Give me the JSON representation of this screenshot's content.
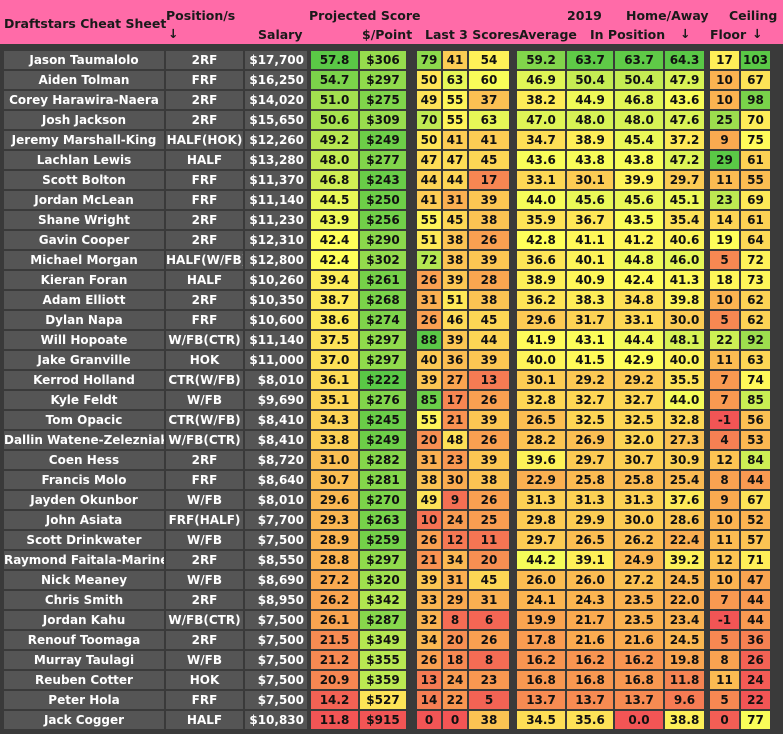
{
  "header": {
    "title": "Draftstars Cheat Sheet",
    "position": "Position/s",
    "position_arrow": "↓",
    "salary": "Salary",
    "projected_score": "Projected Score",
    "per_point": "$/Point",
    "last3": "Last 3 Scores",
    "year": "2019",
    "average": "Average",
    "home_away": "Home/Away",
    "in_position": "In Position",
    "ha_arrow": "↓",
    "floor": "Floor",
    "ceiling": "Ceiling",
    "ceiling_arrow": "↓"
  },
  "players": [
    {
      "name": "Jason Taumalolo",
      "pos": "2RF",
      "salary": "$17,700",
      "proj": "57.8",
      "ppp": "$306",
      "l1": "79",
      "l2": "41",
      "l3": "54",
      "avg": "59.2",
      "inpos": "63.7",
      "ha": "63.7",
      "ha2": "64.3",
      "floor": "17",
      "ceil": "103"
    },
    {
      "name": "Aiden Tolman",
      "pos": "FRF",
      "salary": "$16,250",
      "proj": "54.7",
      "ppp": "$297",
      "l1": "50",
      "l2": "63",
      "l3": "60",
      "avg": "46.9",
      "inpos": "50.4",
      "ha": "50.4",
      "ha2": "47.9",
      "floor": "10",
      "ceil": "67"
    },
    {
      "name": "Corey Harawira-Naera",
      "pos": "2RF",
      "salary": "$14,020",
      "proj": "51.0",
      "ppp": "$275",
      "l1": "49",
      "l2": "55",
      "l3": "37",
      "avg": "38.2",
      "inpos": "44.9",
      "ha": "46.8",
      "ha2": "43.6",
      "floor": "10",
      "ceil": "98"
    },
    {
      "name": "Josh Jackson",
      "pos": "2RF",
      "salary": "$15,650",
      "proj": "50.6",
      "ppp": "$309",
      "l1": "70",
      "l2": "55",
      "l3": "63",
      "avg": "47.0",
      "inpos": "48.0",
      "ha": "48.0",
      "ha2": "47.6",
      "floor": "25",
      "ceil": "70"
    },
    {
      "name": "Jeremy Marshall-King",
      "pos": "HALF(HOK)",
      "salary": "$12,260",
      "proj": "49.2",
      "ppp": "$249",
      "l1": "50",
      "l2": "41",
      "l3": "41",
      "avg": "34.7",
      "inpos": "38.9",
      "ha": "45.4",
      "ha2": "37.2",
      "floor": "9",
      "ceil": "75"
    },
    {
      "name": "Lachlan Lewis",
      "pos": "HALF",
      "salary": "$13,280",
      "proj": "48.0",
      "ppp": "$277",
      "l1": "47",
      "l2": "47",
      "l3": "45",
      "avg": "43.6",
      "inpos": "43.8",
      "ha": "43.8",
      "ha2": "47.2",
      "floor": "29",
      "ceil": "61"
    },
    {
      "name": "Scott Bolton",
      "pos": "FRF",
      "salary": "$11,370",
      "proj": "46.8",
      "ppp": "$243",
      "l1": "44",
      "l2": "44",
      "l3": "17",
      "avg": "33.1",
      "inpos": "30.1",
      "ha": "39.9",
      "ha2": "29.7",
      "floor": "11",
      "ceil": "55"
    },
    {
      "name": "Jordan McLean",
      "pos": "FRF",
      "salary": "$11,140",
      "proj": "44.5",
      "ppp": "$250",
      "l1": "41",
      "l2": "31",
      "l3": "39",
      "avg": "44.0",
      "inpos": "45.6",
      "ha": "45.6",
      "ha2": "45.1",
      "floor": "23",
      "ceil": "69"
    },
    {
      "name": "Shane Wright",
      "pos": "2RF",
      "salary": "$11,230",
      "proj": "43.9",
      "ppp": "$256",
      "l1": "55",
      "l2": "45",
      "l3": "38",
      "avg": "35.9",
      "inpos": "36.7",
      "ha": "43.5",
      "ha2": "35.4",
      "floor": "14",
      "ceil": "61"
    },
    {
      "name": "Gavin Cooper",
      "pos": "2RF",
      "salary": "$12,310",
      "proj": "42.4",
      "ppp": "$290",
      "l1": "51",
      "l2": "38",
      "l3": "26",
      "avg": "42.8",
      "inpos": "41.1",
      "ha": "41.2",
      "ha2": "40.6",
      "floor": "19",
      "ceil": "64"
    },
    {
      "name": "Michael Morgan",
      "pos": "HALF(W/FB)",
      "salary": "$12,800",
      "proj": "42.4",
      "ppp": "$302",
      "l1": "72",
      "l2": "38",
      "l3": "39",
      "avg": "36.6",
      "inpos": "40.1",
      "ha": "44.8",
      "ha2": "46.0",
      "floor": "5",
      "ceil": "72"
    },
    {
      "name": "Kieran Foran",
      "pos": "HALF",
      "salary": "$10,260",
      "proj": "39.4",
      "ppp": "$261",
      "l1": "26",
      "l2": "39",
      "l3": "28",
      "avg": "38.9",
      "inpos": "40.9",
      "ha": "42.4",
      "ha2": "41.3",
      "floor": "18",
      "ceil": "73"
    },
    {
      "name": "Adam Elliott",
      "pos": "2RF",
      "salary": "$10,350",
      "proj": "38.7",
      "ppp": "$268",
      "l1": "31",
      "l2": "51",
      "l3": "38",
      "avg": "36.2",
      "inpos": "38.3",
      "ha": "34.8",
      "ha2": "39.8",
      "floor": "10",
      "ceil": "62"
    },
    {
      "name": "Dylan Napa",
      "pos": "FRF",
      "salary": "$10,600",
      "proj": "38.6",
      "ppp": "$274",
      "l1": "26",
      "l2": "46",
      "l3": "45",
      "avg": "29.6",
      "inpos": "31.7",
      "ha": "33.1",
      "ha2": "30.0",
      "floor": "5",
      "ceil": "62"
    },
    {
      "name": "Will Hopoate",
      "pos": "W/FB(CTR)",
      "salary": "$11,140",
      "proj": "37.5",
      "ppp": "$297",
      "l1": "88",
      "l2": "39",
      "l3": "44",
      "avg": "41.9",
      "inpos": "43.1",
      "ha": "44.4",
      "ha2": "48.1",
      "floor": "22",
      "ceil": "92"
    },
    {
      "name": "Jake Granville",
      "pos": "HOK",
      "salary": "$11,000",
      "proj": "37.0",
      "ppp": "$297",
      "l1": "40",
      "l2": "36",
      "l3": "39",
      "avg": "40.0",
      "inpos": "41.5",
      "ha": "42.9",
      "ha2": "40.0",
      "floor": "11",
      "ceil": "63"
    },
    {
      "name": "Kerrod Holland",
      "pos": "CTR(W/FB)",
      "salary": "$8,010",
      "proj": "36.1",
      "ppp": "$222",
      "l1": "39",
      "l2": "27",
      "l3": "13",
      "avg": "30.1",
      "inpos": "29.2",
      "ha": "29.2",
      "ha2": "35.5",
      "floor": "7",
      "ceil": "74"
    },
    {
      "name": "Kyle Feldt",
      "pos": "W/FB",
      "salary": "$9,690",
      "proj": "35.1",
      "ppp": "$276",
      "l1": "85",
      "l2": "17",
      "l3": "26",
      "avg": "32.8",
      "inpos": "32.7",
      "ha": "32.7",
      "ha2": "44.0",
      "floor": "7",
      "ceil": "85"
    },
    {
      "name": "Tom Opacic",
      "pos": "CTR(W/FB)",
      "salary": "$8,410",
      "proj": "34.3",
      "ppp": "$245",
      "l1": "55",
      "l2": "21",
      "l3": "39",
      "avg": "26.5",
      "inpos": "32.5",
      "ha": "32.5",
      "ha2": "32.8",
      "floor": "-1",
      "ceil": "56"
    },
    {
      "name": "Dallin Watene-Zelezniak",
      "pos": "W/FB(CTR)",
      "salary": "$8,410",
      "proj": "33.8",
      "ppp": "$249",
      "l1": "20",
      "l2": "48",
      "l3": "26",
      "avg": "28.2",
      "inpos": "26.9",
      "ha": "32.0",
      "ha2": "27.3",
      "floor": "4",
      "ceil": "53"
    },
    {
      "name": "Coen Hess",
      "pos": "2RF",
      "salary": "$8,720",
      "proj": "31.0",
      "ppp": "$282",
      "l1": "31",
      "l2": "23",
      "l3": "39",
      "avg": "39.6",
      "inpos": "29.7",
      "ha": "30.7",
      "ha2": "30.9",
      "floor": "12",
      "ceil": "84"
    },
    {
      "name": "Francis Molo",
      "pos": "FRF",
      "salary": "$8,640",
      "proj": "30.7",
      "ppp": "$281",
      "l1": "38",
      "l2": "30",
      "l3": "38",
      "avg": "22.9",
      "inpos": "25.8",
      "ha": "25.8",
      "ha2": "25.4",
      "floor": "8",
      "ceil": "44"
    },
    {
      "name": "Jayden Okunbor",
      "pos": "W/FB",
      "salary": "$8,010",
      "proj": "29.6",
      "ppp": "$270",
      "l1": "49",
      "l2": "9",
      "l3": "26",
      "avg": "31.3",
      "inpos": "31.3",
      "ha": "31.3",
      "ha2": "37.6",
      "floor": "9",
      "ceil": "67"
    },
    {
      "name": "John Asiata",
      "pos": "FRF(HALF)",
      "salary": "$7,700",
      "proj": "29.3",
      "ppp": "$263",
      "l1": "10",
      "l2": "24",
      "l3": "25",
      "avg": "29.8",
      "inpos": "29.9",
      "ha": "30.0",
      "ha2": "28.6",
      "floor": "10",
      "ceil": "52"
    },
    {
      "name": "Scott Drinkwater",
      "pos": "W/FB",
      "salary": "$7,500",
      "proj": "28.9",
      "ppp": "$259",
      "l1": "26",
      "l2": "12",
      "l3": "11",
      "avg": "29.7",
      "inpos": "26.5",
      "ha": "26.2",
      "ha2": "22.4",
      "floor": "11",
      "ceil": "57"
    },
    {
      "name": "Raymond Faitala-Mariner",
      "pos": "2RF",
      "salary": "$8,550",
      "proj": "28.8",
      "ppp": "$297",
      "l1": "21",
      "l2": "34",
      "l3": "20",
      "avg": "44.2",
      "inpos": "39.1",
      "ha": "24.9",
      "ha2": "39.2",
      "floor": "12",
      "ceil": "71"
    },
    {
      "name": "Nick Meaney",
      "pos": "W/FB",
      "salary": "$8,690",
      "proj": "27.2",
      "ppp": "$320",
      "l1": "39",
      "l2": "31",
      "l3": "45",
      "avg": "26.0",
      "inpos": "26.0",
      "ha": "27.2",
      "ha2": "24.5",
      "floor": "10",
      "ceil": "47"
    },
    {
      "name": "Chris Smith",
      "pos": "2RF",
      "salary": "$8,950",
      "proj": "26.2",
      "ppp": "$342",
      "l1": "33",
      "l2": "29",
      "l3": "31",
      "avg": "24.1",
      "inpos": "24.3",
      "ha": "23.5",
      "ha2": "22.0",
      "floor": "7",
      "ceil": "44"
    },
    {
      "name": "Jordan Kahu",
      "pos": "W/FB(CTR)",
      "salary": "$7,500",
      "proj": "26.1",
      "ppp": "$287",
      "l1": "32",
      "l2": "8",
      "l3": "6",
      "avg": "19.9",
      "inpos": "21.7",
      "ha": "23.5",
      "ha2": "23.4",
      "floor": "-1",
      "ceil": "44"
    },
    {
      "name": "Renouf Toomaga",
      "pos": "2RF",
      "salary": "$7,500",
      "proj": "21.5",
      "ppp": "$349",
      "l1": "34",
      "l2": "20",
      "l3": "26",
      "avg": "17.8",
      "inpos": "21.6",
      "ha": "21.6",
      "ha2": "24.5",
      "floor": "5",
      "ceil": "36"
    },
    {
      "name": "Murray Taulagi",
      "pos": "W/FB",
      "salary": "$7,500",
      "proj": "21.2",
      "ppp": "$355",
      "l1": "26",
      "l2": "18",
      "l3": "8",
      "avg": "16.2",
      "inpos": "16.2",
      "ha": "16.2",
      "ha2": "19.8",
      "floor": "8",
      "ceil": "26"
    },
    {
      "name": "Reuben Cotter",
      "pos": "HOK",
      "salary": "$7,500",
      "proj": "20.9",
      "ppp": "$359",
      "l1": "13",
      "l2": "24",
      "l3": "23",
      "avg": "16.8",
      "inpos": "16.8",
      "ha": "16.8",
      "ha2": "11.8",
      "floor": "11",
      "ceil": "24"
    },
    {
      "name": "Peter Hola",
      "pos": "FRF",
      "salary": "$7,500",
      "proj": "14.2",
      "ppp": "$527",
      "l1": "14",
      "l2": "22",
      "l3": "5",
      "avg": "13.7",
      "inpos": "13.7",
      "ha": "13.7",
      "ha2": "9.6",
      "floor": "5",
      "ceil": "22"
    },
    {
      "name": "Jack Cogger",
      "pos": "HALF",
      "salary": "$10,830",
      "proj": "11.8",
      "ppp": "$915",
      "l1": "0",
      "l2": "0",
      "l3": "38",
      "avg": "34.5",
      "inpos": "35.6",
      "ha": "0.0",
      "ha2": "38.8",
      "floor": "0",
      "ceil": "77"
    }
  ]
}
